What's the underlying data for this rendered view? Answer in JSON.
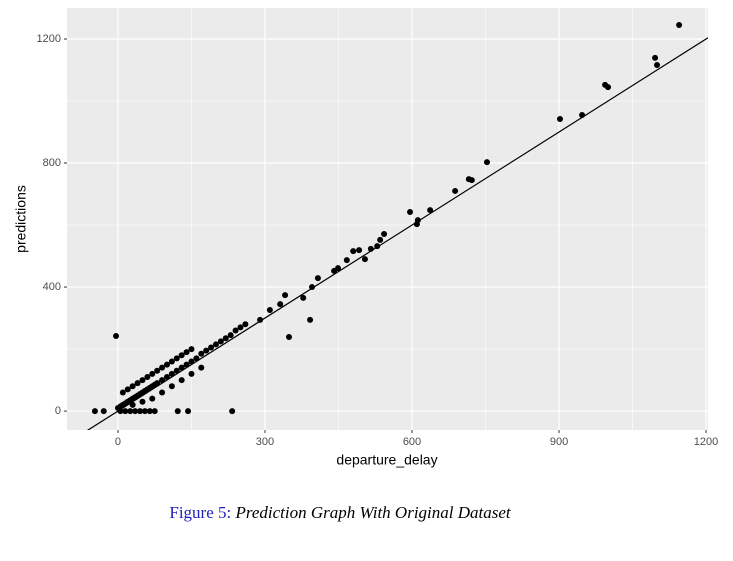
{
  "chart_data": {
    "type": "scatter",
    "x_label": "departure_delay",
    "y_label": "predictions",
    "xlim": [
      -104,
      1204
    ],
    "ylim": [
      -61,
      1300
    ],
    "xticks": [
      0,
      300,
      600,
      900,
      1200
    ],
    "yticks": [
      0,
      400,
      800,
      1200
    ],
    "grid": true,
    "color": "#000000",
    "reference_line": {
      "slope": 1,
      "intercept": 0
    },
    "x": [
      1145,
      1096,
      1100,
      994,
      1000,
      947,
      902,
      753,
      716,
      722,
      688,
      637,
      612,
      610,
      596,
      543,
      535,
      529,
      516,
      504,
      492,
      480,
      467,
      449,
      441,
      408,
      396,
      392,
      378,
      349,
      341,
      331,
      310,
      290,
      -4,
      233,
      143,
      122,
      -47,
      -29,
      0,
      5,
      10,
      15,
      20,
      25,
      30,
      35,
      40,
      45,
      50,
      55,
      60,
      65,
      70,
      75,
      80,
      90,
      100,
      110,
      120,
      130,
      140,
      150,
      160,
      170,
      180,
      190,
      200,
      210,
      220,
      230,
      240,
      250,
      260,
      10,
      20,
      30,
      40,
      50,
      60,
      70,
      80,
      90,
      100,
      110,
      120,
      130,
      140,
      150,
      5,
      15,
      25,
      35,
      45,
      55,
      65,
      75,
      30,
      50,
      70,
      90,
      110,
      130,
      150,
      170
    ],
    "values": [
      1245,
      1139,
      1116,
      1052,
      1045,
      955,
      942,
      803,
      748,
      745,
      710,
      648,
      616,
      603,
      642,
      571,
      552,
      532,
      523,
      490,
      519,
      516,
      487,
      461,
      452,
      429,
      400,
      294,
      365,
      239,
      374,
      345,
      326,
      294,
      242,
      0,
      0,
      0,
      0,
      0,
      10,
      15,
      20,
      25,
      30,
      35,
      40,
      45,
      50,
      55,
      60,
      65,
      70,
      75,
      80,
      85,
      90,
      100,
      110,
      120,
      130,
      140,
      150,
      160,
      170,
      185,
      195,
      205,
      215,
      225,
      235,
      245,
      260,
      270,
      280,
      60,
      70,
      80,
      90,
      100,
      110,
      120,
      130,
      140,
      150,
      160,
      170,
      180,
      190,
      200,
      0,
      0,
      0,
      0,
      0,
      0,
      0,
      0,
      20,
      30,
      40,
      60,
      80,
      100,
      120,
      140
    ]
  },
  "caption": {
    "label": "Figure 5:",
    "text": "Prediction Graph With Original Dataset"
  }
}
